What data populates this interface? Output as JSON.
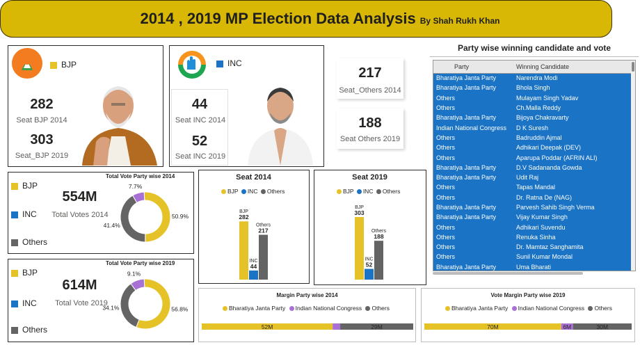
{
  "header": {
    "title": "2014 , 2019 MP Election Data Analysis",
    "byline": "By Shah Rukh Khan"
  },
  "colors": {
    "bjp": "#e6c229",
    "inc": "#1a73c4",
    "others": "#646464",
    "inc_margin": "#a970d6"
  },
  "bjp_card": {
    "party": "BJP",
    "seat_2014": "282",
    "seat_2014_label": "Seat BJP 2014",
    "seat_2019": "303",
    "seat_2019_label": "Seat_BJP 2019"
  },
  "inc_card": {
    "party": "INC",
    "seat_2014": "44",
    "seat_2014_label": "Seat INC 2014",
    "seat_2019": "52",
    "seat_2019_label": "Seat INC 2019"
  },
  "others_2014": {
    "value": "217",
    "label": "Seat_Others 2014"
  },
  "others_2019": {
    "value": "188",
    "label": "Seat Others 2019"
  },
  "winners": {
    "title": "Party wise winning candidate and vote",
    "col_party": "Party",
    "col_candidate": "Winning Candidate",
    "rows": [
      [
        "Bharatiya Janta Party",
        "Narendra Modi"
      ],
      [
        "Bharatiya Janta Party",
        "Bhola Singh"
      ],
      [
        "Others",
        "Mulayam Singh Yadav"
      ],
      [
        "Others",
        "Ch.Malla Reddy"
      ],
      [
        "Bharatiya Janta Party",
        "Bijoya Chakravarty"
      ],
      [
        "Indian National Congress",
        "D K Suresh"
      ],
      [
        "Others",
        "Badruddin Ajmal"
      ],
      [
        "Others",
        "Adhikari Deepak (DEV)"
      ],
      [
        "Others",
        "Aparupa Poddar (AFRIN ALI)"
      ],
      [
        "Bharatiya Janta Party",
        "D.V Sadananda Gowda"
      ],
      [
        "Bharatiya Janta Party",
        "Udit Raj"
      ],
      [
        "Others",
        "Tapas Mandal"
      ],
      [
        "Others",
        "Dr. Ratna De (NAG)"
      ],
      [
        "Bharatiya Janta Party",
        "Parvesh Sahib Singh Verma"
      ],
      [
        "Bharatiya Janta Party",
        "Vijay Kumar Singh"
      ],
      [
        "Others",
        "Adhikari Suvendu"
      ],
      [
        "Others",
        "Renuka Sinha"
      ],
      [
        "Others",
        "Dr. Mamtaz Sanghamita"
      ],
      [
        "Others",
        "Sunil Kumar Mondal"
      ],
      [
        "Bharatiya Janta Party",
        "Uma Bharati"
      ]
    ]
  },
  "vote2014": {
    "legend": [
      "BJP",
      "INC",
      "Others"
    ],
    "total": "554M",
    "total_label": "Total Votes 2014"
  },
  "vote2019": {
    "legend": [
      "BJP",
      "INC",
      "Others"
    ],
    "total": "614M",
    "total_label": "Total Vote 2019"
  },
  "chart_data": [
    {
      "type": "pie",
      "title": "Total Vote Party wise 2014",
      "categories": [
        "BJP",
        "INC",
        "Others"
      ],
      "values": [
        50.9,
        7.7,
        41.4
      ],
      "value_labels": [
        "50.9%",
        "7.7%",
        "41.4%"
      ],
      "slice_colors": [
        "#e6c229",
        "#a970d6",
        "#646464"
      ]
    },
    {
      "type": "pie",
      "title": "Total Vote Party wise 2019",
      "categories": [
        "BJP",
        "INC",
        "Others"
      ],
      "values": [
        56.8,
        9.1,
        34.1
      ],
      "value_labels": [
        "56.8%",
        "9.1%",
        "34.1%"
      ],
      "slice_colors": [
        "#e6c229",
        "#a970d6",
        "#646464"
      ]
    },
    {
      "type": "bar",
      "title": "Seat 2014",
      "legend": [
        "BJP",
        "INC",
        "Others"
      ],
      "categories": [
        "BJP",
        "INC",
        "Others"
      ],
      "values": [
        282,
        44,
        217
      ],
      "ylim": [
        0,
        303
      ]
    },
    {
      "type": "bar",
      "title": "Seat 2019",
      "legend": [
        "BJP",
        "INC",
        "Others"
      ],
      "categories": [
        "BJP",
        "INC",
        "Others"
      ],
      "values": [
        303,
        52,
        188
      ],
      "ylim": [
        0,
        303
      ]
    },
    {
      "type": "bar",
      "title": "Margin Party wise 2014",
      "orientation": "horizontal-stacked",
      "legend": [
        "Bharatiya Janta Party",
        "Indian National Congress",
        "Others"
      ],
      "categories": [
        "Bharatiya Janta Party",
        "Indian National Congress",
        "Others"
      ],
      "values": [
        52,
        3,
        29
      ],
      "value_labels": [
        "52M",
        "",
        "29M"
      ]
    },
    {
      "type": "bar",
      "title": "Vote Margin Party wise 2019",
      "orientation": "horizontal-stacked",
      "legend": [
        "Bharatiya Janta Party",
        "Indian National Congress",
        "Others"
      ],
      "categories": [
        "Bharatiya Janta Party",
        "Indian National Congress",
        "Others"
      ],
      "values": [
        70,
        6,
        30
      ],
      "value_labels": [
        "70M",
        "6M",
        "30M"
      ]
    }
  ]
}
